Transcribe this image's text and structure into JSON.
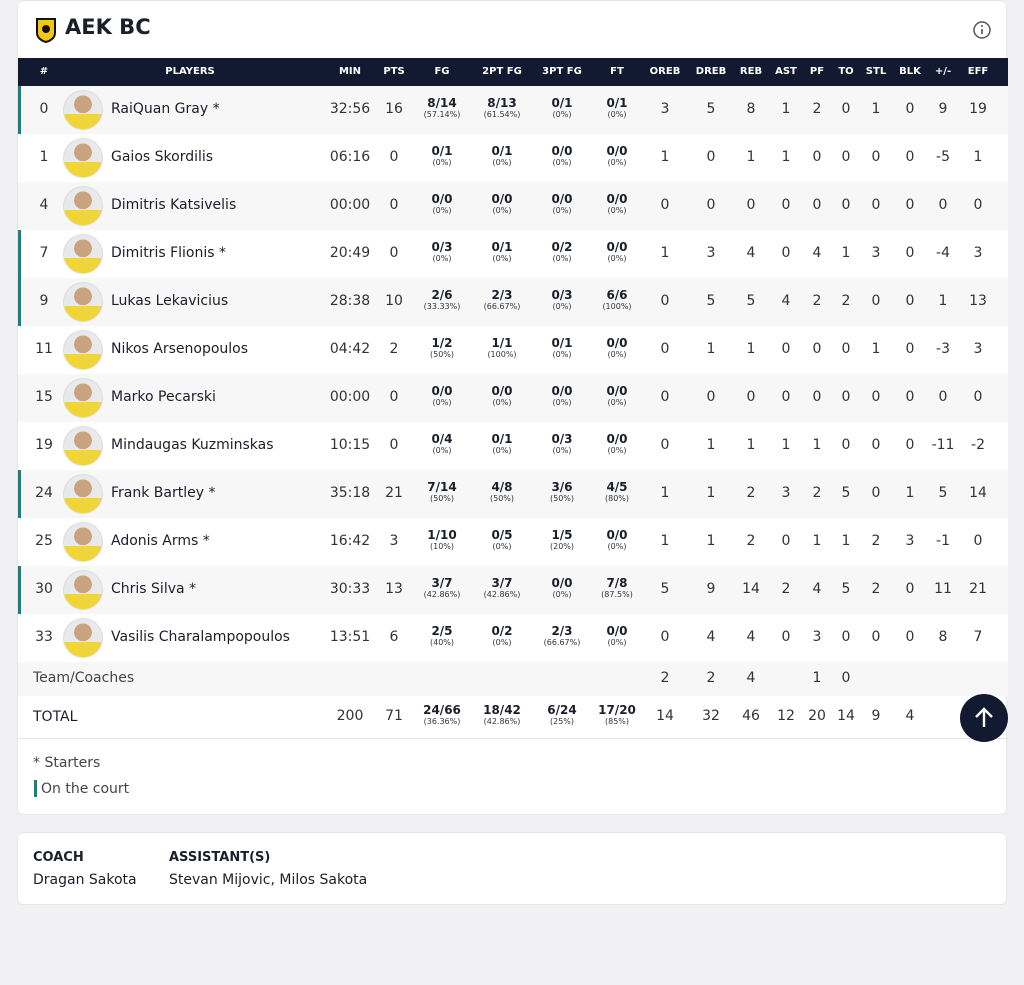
{
  "header": {
    "title": "AEK BC"
  },
  "table": {
    "columns": [
      "#",
      "PLAYERS",
      "MIN",
      "PTS",
      "FG",
      "2PT FG",
      "3PT FG",
      "FT",
      "OREB",
      "DREB",
      "REB",
      "AST",
      "PF",
      "TO",
      "STL",
      "BLK",
      "+/-",
      "EFF"
    ],
    "rows": [
      {
        "number": 0,
        "name": "RaiQuan Gray *",
        "on_court": true,
        "min": "32:56",
        "pts": 16,
        "fg": {
          "made": "8/14",
          "pct": "(57.14%)"
        },
        "fg2": {
          "made": "8/13",
          "pct": "(61.54%)"
        },
        "fg3": {
          "made": "0/1",
          "pct": "(0%)"
        },
        "ft": {
          "made": "0/1",
          "pct": "(0%)"
        },
        "stats": [
          3,
          5,
          8,
          1,
          2,
          0,
          1,
          0,
          9,
          19
        ]
      },
      {
        "number": 1,
        "name": "Gaios Skordilis",
        "on_court": false,
        "min": "06:16",
        "pts": 0,
        "fg": {
          "made": "0/1",
          "pct": "(0%)"
        },
        "fg2": {
          "made": "0/1",
          "pct": "(0%)"
        },
        "fg3": {
          "made": "0/0",
          "pct": "(0%)"
        },
        "ft": {
          "made": "0/0",
          "pct": "(0%)"
        },
        "stats": [
          1,
          0,
          1,
          1,
          0,
          0,
          0,
          0,
          -5,
          1
        ]
      },
      {
        "number": 4,
        "name": "Dimitris Katsivelis",
        "on_court": false,
        "min": "00:00",
        "pts": 0,
        "fg": {
          "made": "0/0",
          "pct": "(0%)"
        },
        "fg2": {
          "made": "0/0",
          "pct": "(0%)"
        },
        "fg3": {
          "made": "0/0",
          "pct": "(0%)"
        },
        "ft": {
          "made": "0/0",
          "pct": "(0%)"
        },
        "stats": [
          0,
          0,
          0,
          0,
          0,
          0,
          0,
          0,
          0,
          0
        ]
      },
      {
        "number": 7,
        "name": "Dimitris Flionis *",
        "on_court": true,
        "min": "20:49",
        "pts": 0,
        "fg": {
          "made": "0/3",
          "pct": "(0%)"
        },
        "fg2": {
          "made": "0/1",
          "pct": "(0%)"
        },
        "fg3": {
          "made": "0/2",
          "pct": "(0%)"
        },
        "ft": {
          "made": "0/0",
          "pct": "(0%)"
        },
        "stats": [
          1,
          3,
          4,
          0,
          4,
          1,
          3,
          0,
          -4,
          3
        ]
      },
      {
        "number": 9,
        "name": "Lukas Lekavicius",
        "on_court": true,
        "min": "28:38",
        "pts": 10,
        "fg": {
          "made": "2/6",
          "pct": "(33.33%)"
        },
        "fg2": {
          "made": "2/3",
          "pct": "(66.67%)"
        },
        "fg3": {
          "made": "0/3",
          "pct": "(0%)"
        },
        "ft": {
          "made": "6/6",
          "pct": "(100%)"
        },
        "stats": [
          0,
          5,
          5,
          4,
          2,
          2,
          0,
          0,
          1,
          13
        ]
      },
      {
        "number": 11,
        "name": "Nikos Arsenopoulos",
        "on_court": false,
        "min": "04:42",
        "pts": 2,
        "fg": {
          "made": "1/2",
          "pct": "(50%)"
        },
        "fg2": {
          "made": "1/1",
          "pct": "(100%)"
        },
        "fg3": {
          "made": "0/1",
          "pct": "(0%)"
        },
        "ft": {
          "made": "0/0",
          "pct": "(0%)"
        },
        "stats": [
          0,
          1,
          1,
          0,
          0,
          0,
          1,
          0,
          -3,
          3
        ]
      },
      {
        "number": 15,
        "name": "Marko Pecarski",
        "on_court": false,
        "min": "00:00",
        "pts": 0,
        "fg": {
          "made": "0/0",
          "pct": "(0%)"
        },
        "fg2": {
          "made": "0/0",
          "pct": "(0%)"
        },
        "fg3": {
          "made": "0/0",
          "pct": "(0%)"
        },
        "ft": {
          "made": "0/0",
          "pct": "(0%)"
        },
        "stats": [
          0,
          0,
          0,
          0,
          0,
          0,
          0,
          0,
          0,
          0
        ]
      },
      {
        "number": 19,
        "name": "Mindaugas Kuzminskas",
        "on_court": false,
        "min": "10:15",
        "pts": 0,
        "fg": {
          "made": "0/4",
          "pct": "(0%)"
        },
        "fg2": {
          "made": "0/1",
          "pct": "(0%)"
        },
        "fg3": {
          "made": "0/3",
          "pct": "(0%)"
        },
        "ft": {
          "made": "0/0",
          "pct": "(0%)"
        },
        "stats": [
          0,
          1,
          1,
          1,
          1,
          0,
          0,
          0,
          -11,
          -2
        ]
      },
      {
        "number": 24,
        "name": "Frank Bartley *",
        "on_court": true,
        "min": "35:18",
        "pts": 21,
        "fg": {
          "made": "7/14",
          "pct": "(50%)"
        },
        "fg2": {
          "made": "4/8",
          "pct": "(50%)"
        },
        "fg3": {
          "made": "3/6",
          "pct": "(50%)"
        },
        "ft": {
          "made": "4/5",
          "pct": "(80%)"
        },
        "stats": [
          1,
          1,
          2,
          3,
          2,
          5,
          0,
          1,
          5,
          14
        ]
      },
      {
        "number": 25,
        "name": "Adonis Arms *",
        "on_court": false,
        "min": "16:42",
        "pts": 3,
        "fg": {
          "made": "1/10",
          "pct": "(10%)"
        },
        "fg2": {
          "made": "0/5",
          "pct": "(0%)"
        },
        "fg3": {
          "made": "1/5",
          "pct": "(20%)"
        },
        "ft": {
          "made": "0/0",
          "pct": "(0%)"
        },
        "stats": [
          1,
          1,
          2,
          0,
          1,
          1,
          2,
          3,
          -1,
          0
        ]
      },
      {
        "number": 30,
        "name": "Chris Silva *",
        "on_court": true,
        "min": "30:33",
        "pts": 13,
        "fg": {
          "made": "3/7",
          "pct": "(42.86%)"
        },
        "fg2": {
          "made": "3/7",
          "pct": "(42.86%)"
        },
        "fg3": {
          "made": "0/0",
          "pct": "(0%)"
        },
        "ft": {
          "made": "7/8",
          "pct": "(87.5%)"
        },
        "stats": [
          5,
          9,
          14,
          2,
          4,
          5,
          2,
          0,
          11,
          21
        ]
      },
      {
        "number": 33,
        "name": "Vasilis Charalampopoulos",
        "on_court": false,
        "min": "13:51",
        "pts": 6,
        "fg": {
          "made": "2/5",
          "pct": "(40%)"
        },
        "fg2": {
          "made": "0/2",
          "pct": "(0%)"
        },
        "fg3": {
          "made": "2/3",
          "pct": "(66.67%)"
        },
        "ft": {
          "made": "0/0",
          "pct": "(0%)"
        },
        "stats": [
          0,
          4,
          4,
          0,
          3,
          0,
          0,
          0,
          8,
          7
        ]
      }
    ],
    "team": {
      "label": "Team/Coaches",
      "stats": [
        2,
        2,
        4,
        null,
        1,
        0,
        null,
        null,
        null,
        null
      ]
    },
    "total": {
      "label": "TOTAL",
      "min": 200,
      "pts": 71,
      "fg": {
        "made": "24/66",
        "pct": "(36.36%)"
      },
      "fg2": {
        "made": "18/42",
        "pct": "(42.86%)"
      },
      "fg3": {
        "made": "6/24",
        "pct": "(25%)"
      },
      "ft": {
        "made": "17/20",
        "pct": "(85%)"
      },
      "stats": [
        14,
        32,
        46,
        12,
        20,
        14,
        9,
        4,
        null,
        null
      ]
    }
  },
  "legend": {
    "starters": "* Starters",
    "on_court": "On the court"
  },
  "coaches": {
    "coach_label": "COACH",
    "coach": "Dragan Sakota",
    "assistants_label": "ASSISTANT(S)",
    "assistants": "Stevan Mijovic, Milos Sakota"
  }
}
